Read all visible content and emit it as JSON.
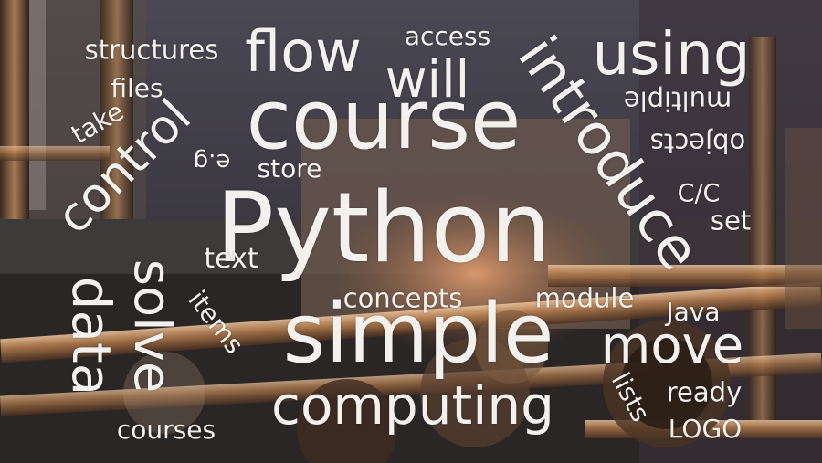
{
  "image": {
    "description_colors": {
      "wall": "#3b3a44",
      "metal": "#8a6a4f",
      "copper": "#c58a5a",
      "dark": "#1c1a1a",
      "highlight": "#e8b88a",
      "text": "#f3f1ee"
    }
  },
  "words": {
    "python": "Python",
    "course": "course",
    "simple": "simple",
    "computing": "computing",
    "using": "using",
    "flow": "flow",
    "will": "will",
    "access": "access",
    "structures": "structures",
    "files": "files",
    "take": "take",
    "control": "control",
    "data": "data",
    "solve": "solve",
    "introduce": "introduce",
    "multiple": "multiple",
    "objects": "objects",
    "eg": "e.g",
    "store": "store",
    "cc": "C/C",
    "set": "set",
    "text": "text",
    "items": "items",
    "concepts": "concepts",
    "module": "module",
    "java": "Java",
    "move": "move",
    "lists": "lists",
    "ready": "ready",
    "courses": "courses",
    "logo": "LOGO"
  }
}
